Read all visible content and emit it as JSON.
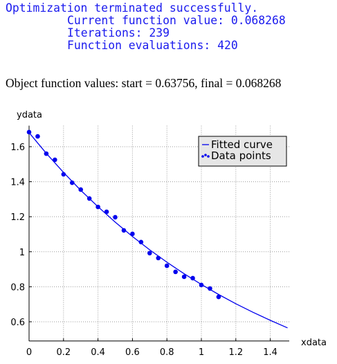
{
  "console": {
    "lines": [
      "Optimization terminated successfully.",
      "Current function value: 0.068268",
      "Iterations: 239",
      "Function evaluations: 420"
    ]
  },
  "summary": "Object function values: start = 0.63756, final = 0.068268",
  "chart_data": {
    "type": "line",
    "xlabel": "xdata",
    "ylabel": "ydata",
    "xlim": [
      0,
      1.51
    ],
    "ylim": [
      0.49,
      1.72
    ],
    "xticks": [
      0,
      0.2,
      0.4,
      0.6,
      0.8,
      1,
      1.2,
      1.4
    ],
    "yticks": [
      0.6,
      0.8,
      1,
      1.2,
      1.4,
      1.6
    ],
    "grid": true,
    "legend": "upper right",
    "series": [
      {
        "name": "Fitted curve",
        "type": "line",
        "color": "#0000ee",
        "x": [
          0,
          0.1,
          0.2,
          0.3,
          0.4,
          0.5,
          0.6,
          0.7,
          0.8,
          0.9,
          1.0,
          1.1,
          1.2,
          1.3,
          1.4,
          1.5
        ],
        "values": [
          1.68,
          1.562,
          1.453,
          1.351,
          1.257,
          1.169,
          1.087,
          1.011,
          0.94,
          0.874,
          0.813,
          0.756,
          0.703,
          0.654,
          0.608,
          0.565
        ]
      },
      {
        "name": "Data points",
        "type": "scatter",
        "color": "#0000ee",
        "x": [
          0,
          0.05,
          0.1,
          0.15,
          0.2,
          0.25,
          0.3,
          0.35,
          0.4,
          0.45,
          0.5,
          0.55,
          0.6,
          0.65,
          0.7,
          0.75,
          0.8,
          0.85,
          0.9,
          0.95,
          1.0,
          1.05,
          1.1
        ],
        "values": [
          1.683,
          1.659,
          1.56,
          1.525,
          1.442,
          1.394,
          1.355,
          1.304,
          1.256,
          1.228,
          1.197,
          1.122,
          1.102,
          1.055,
          0.992,
          0.964,
          0.92,
          0.885,
          0.857,
          0.849,
          0.81,
          0.79,
          0.742
        ]
      }
    ]
  }
}
